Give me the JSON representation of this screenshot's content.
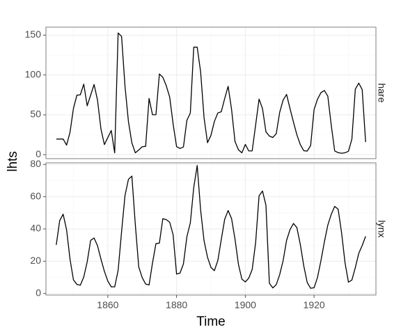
{
  "chart_data": {
    "type": "line",
    "xlabel": "Time",
    "ylabel": "lhts",
    "x_ticks": [
      1860,
      1880,
      1900,
      1920
    ],
    "xlim": [
      1842,
      1938
    ],
    "line_color": "#000000",
    "grid": true,
    "facet_labels_position": "right",
    "x": [
      1845,
      1846,
      1847,
      1848,
      1849,
      1850,
      1851,
      1852,
      1853,
      1854,
      1855,
      1856,
      1857,
      1858,
      1859,
      1860,
      1861,
      1862,
      1863,
      1864,
      1865,
      1866,
      1867,
      1868,
      1869,
      1870,
      1871,
      1872,
      1873,
      1874,
      1875,
      1876,
      1877,
      1878,
      1879,
      1880,
      1881,
      1882,
      1883,
      1884,
      1885,
      1886,
      1887,
      1888,
      1889,
      1890,
      1891,
      1892,
      1893,
      1894,
      1895,
      1896,
      1897,
      1898,
      1899,
      1900,
      1901,
      1902,
      1903,
      1904,
      1905,
      1906,
      1907,
      1908,
      1909,
      1910,
      1911,
      1912,
      1913,
      1914,
      1915,
      1916,
      1917,
      1918,
      1919,
      1920,
      1921,
      1922,
      1923,
      1924,
      1925,
      1926,
      1927,
      1928,
      1929,
      1930,
      1931,
      1932,
      1933,
      1934,
      1935
    ],
    "panels": [
      {
        "label": "hare",
        "ylim": [
          -5,
          160
        ],
        "y_ticks": [
          0,
          50,
          100,
          150
        ],
        "values": [
          19.58,
          19.6,
          19.61,
          11.99,
          28.04,
          58,
          74.6,
          75.09,
          88.48,
          61.28,
          74.67,
          88.06,
          68.51,
          32.19,
          12.64,
          21.49,
          30.35,
          2.18,
          152.65,
          148.36,
          85.81,
          41.41,
          14.75,
          2.28,
          5.91,
          9.95,
          10.44,
          70.64,
          50.12,
          50.13,
          101.25,
          97.12,
          86.51,
          72.17,
          38.32,
          10.11,
          7.74,
          9.67,
          43.12,
          52.21,
          134.85,
          134.86,
          103.79,
          46.1,
          15.03,
          24.2,
          41.65,
          52.34,
          53.78,
          70.4,
          85.81,
          56.69,
          16.59,
          6.16,
          2.3,
          12.82,
          4.72,
          4.73,
          37.22,
          69.72,
          57.78,
          28.68,
          23.37,
          21.54,
          26.34,
          53.1,
          68.48,
          75.58,
          57.92,
          40.97,
          24.95,
          12.59,
          4.97,
          4.5,
          11.34,
          56.6,
          69.63,
          77.74,
          80.53,
          73.38,
          36.93,
          4.64,
          2.54,
          1.8,
          2.39,
          4.23,
          19.52,
          82.11,
          89.76,
          81.66,
          15.76
        ]
      },
      {
        "label": "lynx",
        "ylim": [
          -1,
          81
        ],
        "y_ticks": [
          0,
          20,
          40,
          60,
          80
        ],
        "values": [
          30.09,
          45.15,
          49.15,
          39.52,
          21.23,
          8.42,
          5.56,
          5.08,
          10.17,
          19.6,
          32.91,
          34.38,
          29.59,
          21.3,
          13.69,
          7.65,
          4.08,
          4.09,
          14.33,
          38.22,
          60.78,
          70.77,
          72.77,
          42.68,
          16.39,
          9.83,
          5.8,
          5.26,
          18.91,
          30.95,
          31.18,
          46.34,
          45.77,
          44.15,
          36.33,
          12.03,
          12.6,
          18.34,
          35.14,
          43.77,
          65.69,
          79.35,
          51.65,
          32.59,
          22.45,
          16.16,
          14.12,
          20.38,
          33.33,
          46,
          51.41,
          46.43,
          33.68,
          18.01,
          8.86,
          7.13,
          9.47,
          14.86,
          31.47,
          60.57,
          63.51,
          54.7,
          6.3,
          3.41,
          5.44,
          11.65,
          20.35,
          32.88,
          39.55,
          43.36,
          40.83,
          30.36,
          17.18,
          6.82,
          3.19,
          3.52,
          9.94,
          20.3,
          31.99,
          42.36,
          49.08,
          53.99,
          52.25,
          37.7,
          19.14,
          6.98,
          8.31,
          16.01,
          24.82,
          29.7,
          35.4
        ]
      }
    ]
  }
}
